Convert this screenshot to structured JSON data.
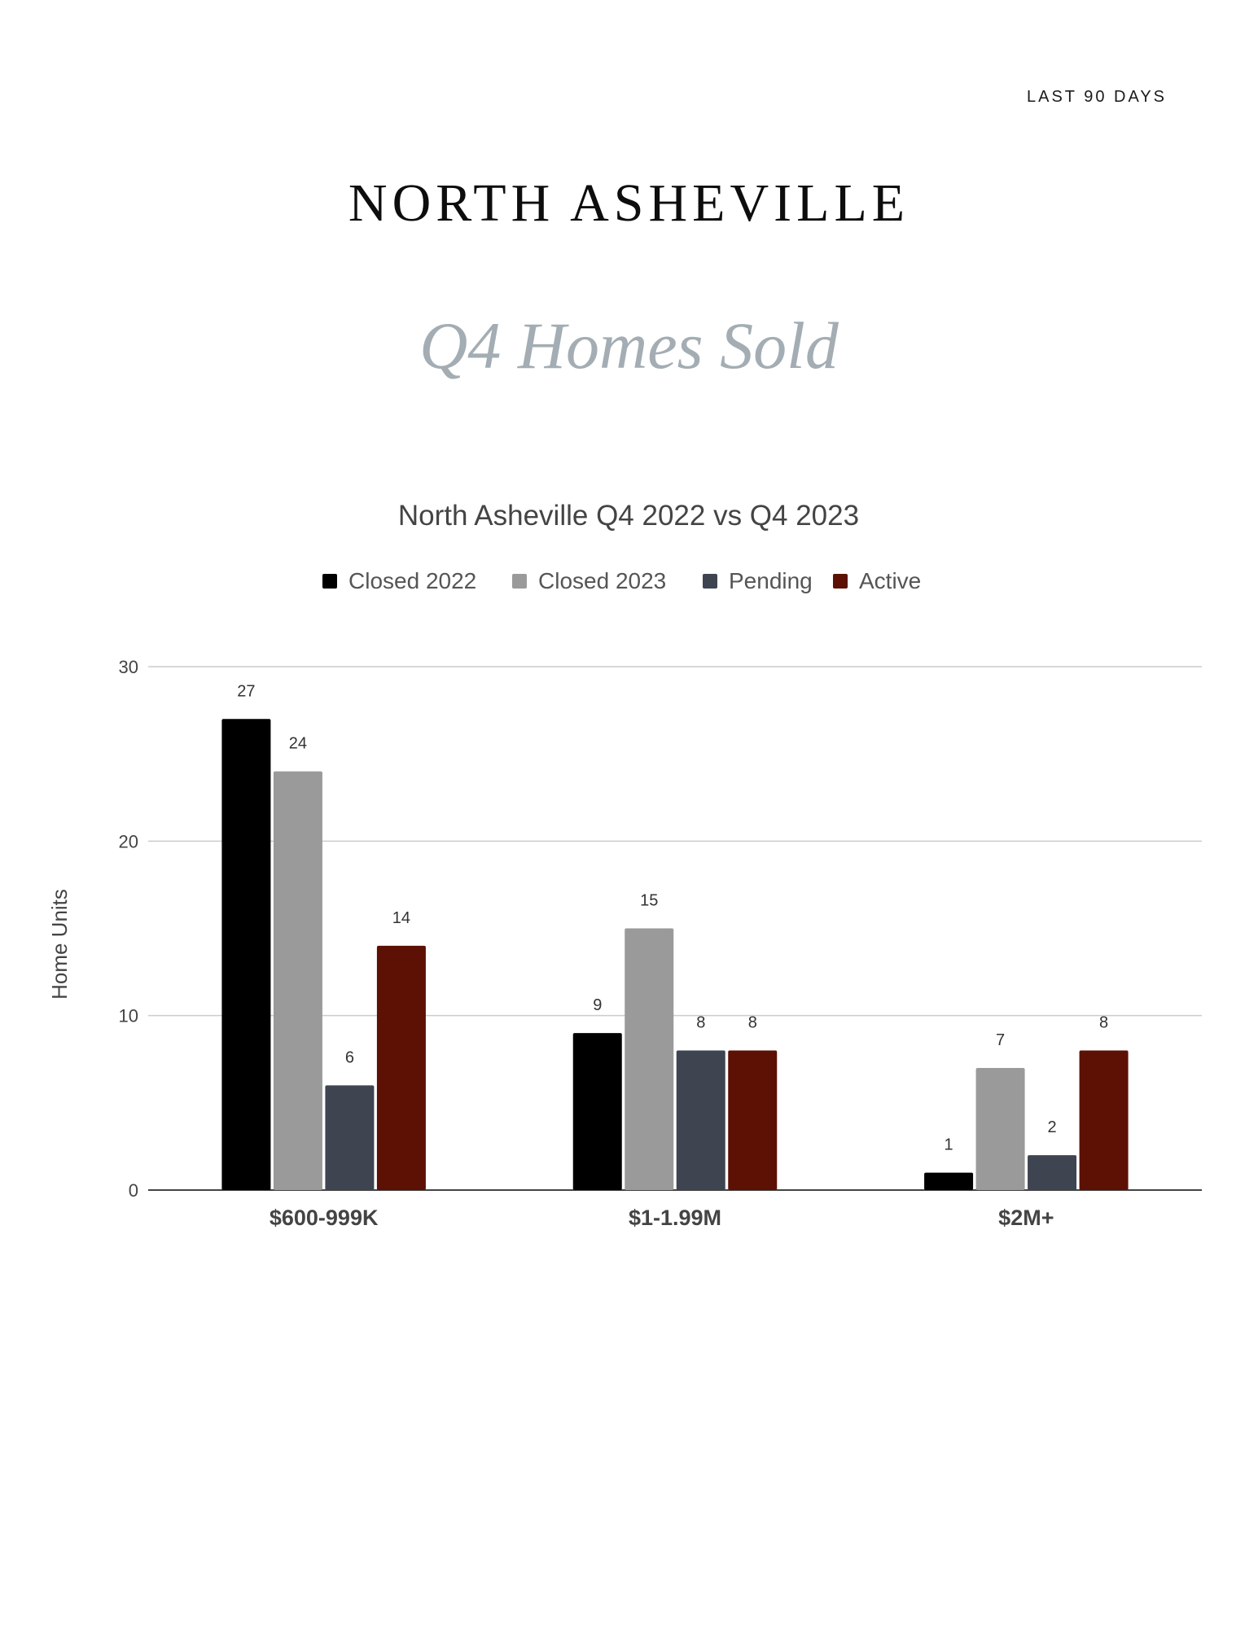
{
  "header": {
    "kicker": "LAST 90 DAYS",
    "title": "NORTH ASHEVILLE",
    "subtitle": "Q4 Homes Sold"
  },
  "chart_data": {
    "type": "bar",
    "title": "North Asheville Q4 2022 vs Q4 2023",
    "xlabel": "",
    "ylabel": "Home Units",
    "ylim": [
      0,
      30
    ],
    "yticks": [
      0,
      10,
      20,
      30
    ],
    "grid": true,
    "legend_position": "top",
    "categories": [
      "$600-999K",
      "$1-1.99M",
      "$2M+"
    ],
    "series": [
      {
        "name": "Closed  2022",
        "values": [
          27,
          9,
          1
        ],
        "color": "#000000"
      },
      {
        "name": "Closed  2023",
        "values": [
          24,
          15,
          7
        ],
        "color": "#9a9a9a"
      },
      {
        "name": "Pending",
        "values": [
          6,
          8,
          2
        ],
        "color": "#3e4550"
      },
      {
        "name": "Active",
        "values": [
          14,
          8,
          8
        ],
        "color": "#5c1104"
      }
    ]
  }
}
